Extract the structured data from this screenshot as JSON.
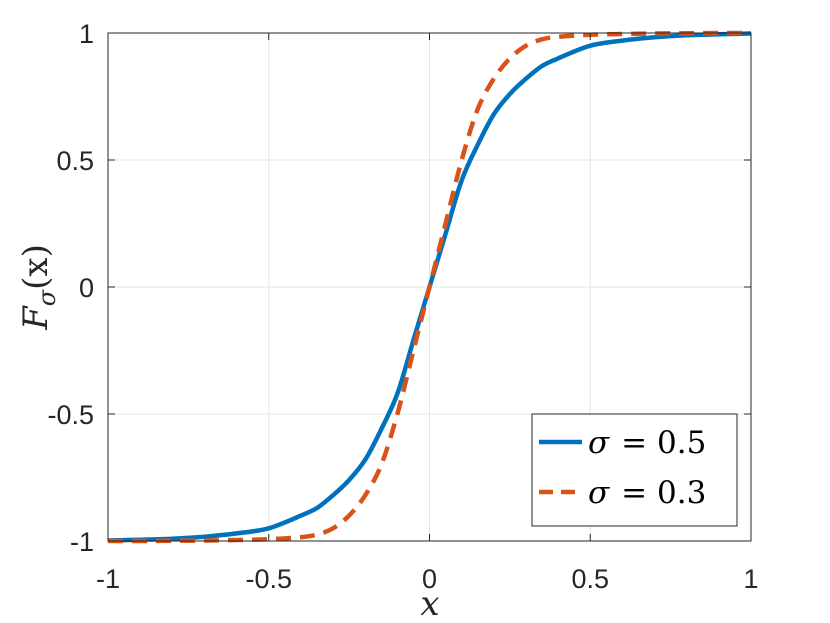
{
  "chart_data": {
    "type": "line",
    "title": "",
    "xlabel": "x",
    "ylabel": "F_σ(x)",
    "ylabel_parts": {
      "main": "F",
      "sub": "σ",
      "arg": "(x)"
    },
    "xlim": [
      -1,
      1
    ],
    "ylim": [
      -1,
      1
    ],
    "xticks": [
      -1,
      -0.5,
      0,
      0.5,
      1
    ],
    "xtick_labels": [
      "-1",
      "-0.5",
      "0",
      "0.5",
      "1"
    ],
    "yticks": [
      -1,
      -0.5,
      0,
      0.5,
      1
    ],
    "ytick_labels": [
      "-1",
      "-0.5",
      "0",
      "0.5",
      "1"
    ],
    "grid": true,
    "legend_position": "bottom-right",
    "x": [
      -1,
      -0.9,
      -0.8,
      -0.7,
      -0.6,
      -0.5,
      -0.4,
      -0.35,
      -0.3,
      -0.25,
      -0.2,
      -0.15,
      -0.1,
      -0.05,
      0,
      0.05,
      0.1,
      0.15,
      0.2,
      0.25,
      0.3,
      0.35,
      0.4,
      0.5,
      0.6,
      0.7,
      0.8,
      0.9,
      1
    ],
    "series": [
      {
        "name": "σ = 0.5",
        "legend_symbol": "σ",
        "legend_value": "= 0.5",
        "color": "#0072BD",
        "dash": "solid",
        "values": [
          -0.998,
          -0.995,
          -0.991,
          -0.983,
          -0.97,
          -0.95,
          -0.9,
          -0.87,
          -0.82,
          -0.76,
          -0.68,
          -0.56,
          -0.42,
          -0.21,
          0,
          0.21,
          0.42,
          0.56,
          0.68,
          0.76,
          0.82,
          0.87,
          0.9,
          0.95,
          0.97,
          0.983,
          0.991,
          0.995,
          0.998
        ]
      },
      {
        "name": "σ = 0.3",
        "legend_symbol": "σ",
        "legend_value": "= 0.3",
        "color": "#D95319",
        "dash": "dashed",
        "values": [
          -1.0,
          -1.0,
          -0.999,
          -0.998,
          -0.996,
          -0.993,
          -0.985,
          -0.975,
          -0.95,
          -0.9,
          -0.82,
          -0.7,
          -0.5,
          -0.25,
          0,
          0.25,
          0.5,
          0.7,
          0.82,
          0.9,
          0.95,
          0.975,
          0.985,
          0.993,
          0.996,
          0.998,
          0.999,
          1.0,
          1.0
        ]
      }
    ],
    "line_colors": {
      "axis": "#262626",
      "grid": "#e6e6e6"
    }
  }
}
